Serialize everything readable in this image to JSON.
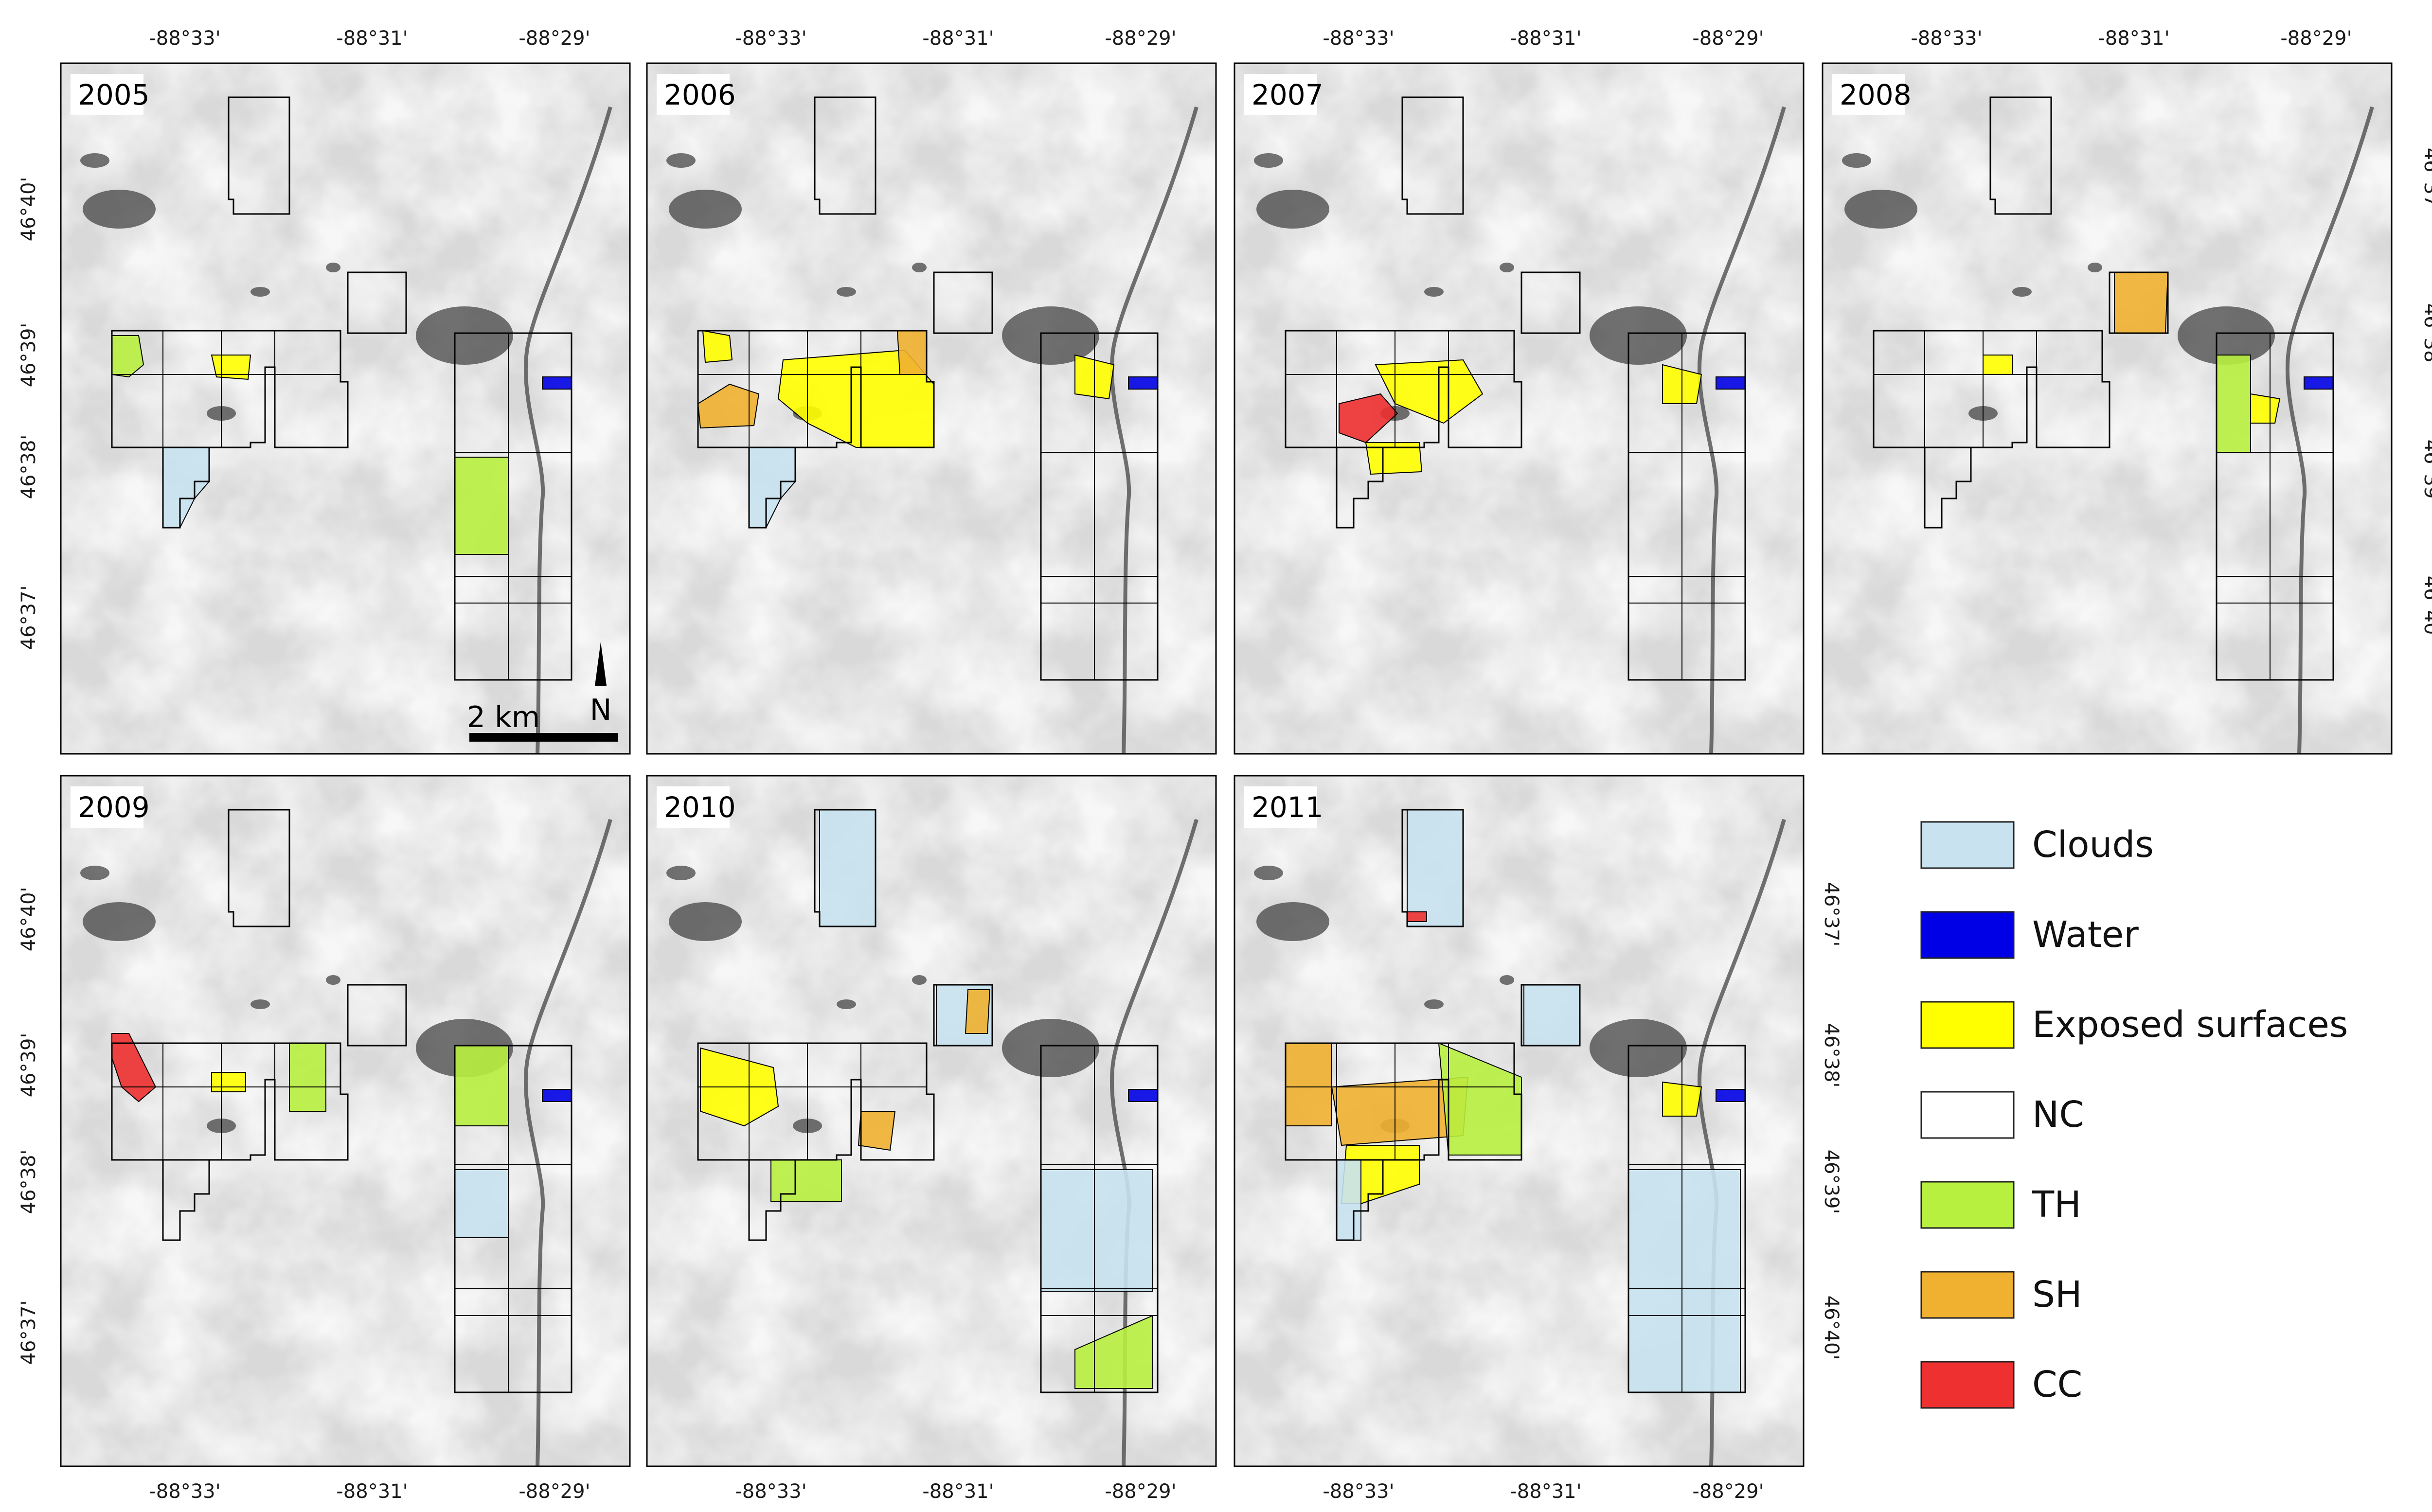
{
  "panels": [
    {
      "year": "2005"
    },
    {
      "year": "2006"
    },
    {
      "year": "2007"
    },
    {
      "year": "2008"
    },
    {
      "year": "2009"
    },
    {
      "year": "2010"
    },
    {
      "year": "2011"
    }
  ],
  "lon_ticks": [
    "-88°33'",
    "-88°31'",
    "-88°29'"
  ],
  "lat_ticks_left": [
    "46°40'",
    "46°39'",
    "46°38'",
    "46°37'"
  ],
  "lat_ticks_right": [
    "46°37'",
    "46°38'",
    "46°39'",
    "46°40'"
  ],
  "scale_bar": {
    "label": "2 km"
  },
  "north_arrow": {
    "label": "N"
  },
  "legend": [
    {
      "label": "Clouds",
      "color": "#c8e2f0"
    },
    {
      "label": "Water",
      "color": "#0000e6"
    },
    {
      "label": "Exposed surfaces",
      "color": "#ffff00"
    },
    {
      "label": "NC",
      "color": "#ffffff"
    },
    {
      "label": "TH",
      "color": "#b8f040"
    },
    {
      "label": "SH",
      "color": "#f0b030"
    },
    {
      "label": "CC",
      "color": "#ee3030"
    }
  ],
  "panel_classes": {
    "2005": [
      "TH",
      "Exposed surfaces",
      "Clouds",
      "Water"
    ],
    "2006": [
      "Exposed surfaces",
      "SH",
      "Clouds",
      "Water"
    ],
    "2007": [
      "Exposed surfaces",
      "CC",
      "Water"
    ],
    "2008": [
      "SH",
      "TH",
      "Exposed surfaces",
      "Water"
    ],
    "2009": [
      "CC",
      "Exposed surfaces",
      "TH",
      "Clouds",
      "Water"
    ],
    "2010": [
      "Clouds",
      "SH",
      "Exposed surfaces",
      "TH",
      "Water"
    ],
    "2011": [
      "Clouds",
      "CC",
      "SH",
      "Exposed surfaces",
      "TH",
      "Water"
    ]
  }
}
